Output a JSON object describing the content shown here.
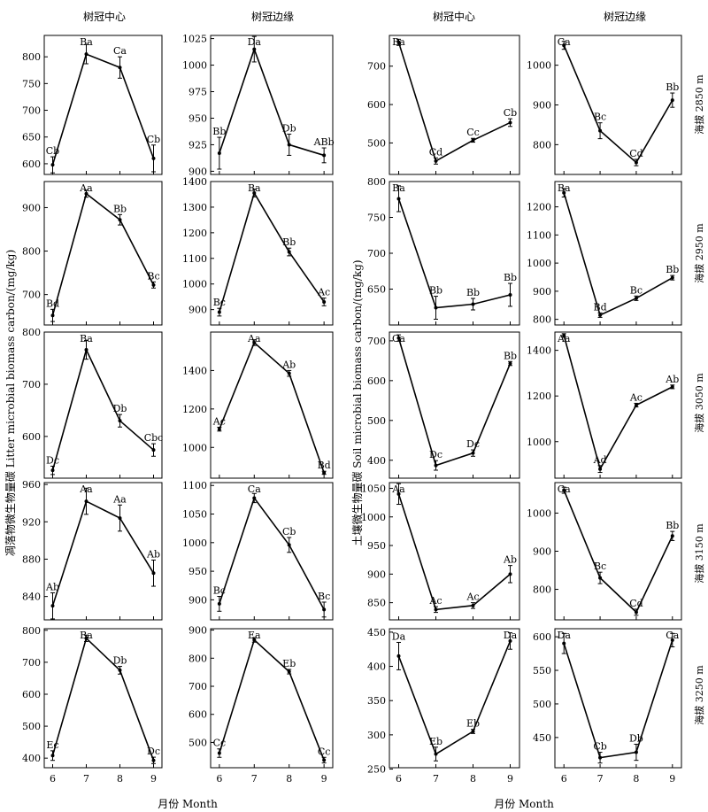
{
  "labels": {
    "col_titles": [
      "树冠中心",
      "树冠边缘",
      "树冠中心",
      "树冠边缘"
    ],
    "row_titles": [
      "海拔 2850 m",
      "海拔 2950 m",
      "海拔 3050 m",
      "海拔 3150 m",
      "海拔 3250 m"
    ],
    "left_ylabel": "凋落物微生物量碳 Litter microbial biomass carbon/(mg/kg)",
    "right_ylabel": "土壤微生物量碳 Soil microbial biomass carbon/(mg/kg)",
    "xlabel_left": "月份 Month",
    "xlabel_right": "月份 Month"
  },
  "chart_data": [
    {
      "type": "line",
      "row": 0,
      "col": 0,
      "x": [
        6,
        7,
        8,
        9
      ],
      "values": [
        598,
        805,
        780,
        610
      ],
      "err": [
        15,
        18,
        20,
        25
      ],
      "labels": [
        "Cb",
        "Ba",
        "Ca",
        "Cb"
      ],
      "ylim": [
        580,
        840
      ],
      "yticks": [
        600,
        650,
        700,
        750,
        800
      ]
    },
    {
      "type": "line",
      "row": 0,
      "col": 1,
      "x": [
        6,
        7,
        8,
        9
      ],
      "values": [
        917,
        1015,
        925,
        915
      ],
      "err": [
        15,
        12,
        10,
        7
      ],
      "labels": [
        "Bb",
        "Da",
        "Db",
        "ABb"
      ],
      "ylim": [
        897,
        1028
      ],
      "yticks": [
        900,
        925,
        950,
        975,
        1000,
        1025
      ]
    },
    {
      "type": "line",
      "row": 0,
      "col": 2,
      "x": [
        6,
        7,
        8,
        9
      ],
      "values": [
        762,
        453,
        507,
        553
      ],
      "err": [
        8,
        8,
        5,
        10
      ],
      "labels": [
        "Ba",
        "Cd",
        "Cc",
        "Cb"
      ],
      "ylim": [
        418,
        780
      ],
      "yticks": [
        500,
        600,
        700
      ]
    },
    {
      "type": "line",
      "row": 0,
      "col": 3,
      "x": [
        6,
        7,
        8,
        9
      ],
      "values": [
        1050,
        835,
        755,
        912
      ],
      "err": [
        10,
        20,
        8,
        18
      ],
      "labels": [
        "Ca",
        "Bc",
        "Cd",
        "Bb"
      ],
      "ylim": [
        725,
        1075
      ],
      "yticks": [
        800,
        900,
        1000
      ]
    },
    {
      "type": "line",
      "row": 1,
      "col": 0,
      "x": [
        6,
        7,
        8,
        9
      ],
      "values": [
        652,
        932,
        872,
        722
      ],
      "err": [
        14,
        8,
        12,
        7
      ],
      "labels": [
        "Bd",
        "Aa",
        "Bb",
        "Bc"
      ],
      "ylim": [
        630,
        960
      ],
      "yticks": [
        700,
        800,
        900
      ]
    },
    {
      "type": "line",
      "row": 1,
      "col": 1,
      "x": [
        6,
        7,
        8,
        9
      ],
      "values": [
        890,
        1355,
        1125,
        930
      ],
      "err": [
        15,
        15,
        15,
        15
      ],
      "labels": [
        "Bc",
        "Ba",
        "Bb",
        "Ac"
      ],
      "ylim": [
        840,
        1400
      ],
      "yticks": [
        900,
        1000,
        1100,
        1200,
        1300,
        1400
      ]
    },
    {
      "type": "line",
      "row": 1,
      "col": 2,
      "x": [
        6,
        7,
        8,
        9
      ],
      "values": [
        776,
        624,
        629,
        642
      ],
      "err": [
        18,
        16,
        8,
        16
      ],
      "labels": [
        "Ba",
        "Bb",
        "Bb",
        "Bb"
      ],
      "ylim": [
        600,
        800
      ],
      "yticks": [
        650,
        700,
        750,
        800
      ]
    },
    {
      "type": "line",
      "row": 1,
      "col": 3,
      "x": [
        6,
        7,
        8,
        9
      ],
      "values": [
        1250,
        815,
        875,
        948
      ],
      "err": [
        15,
        8,
        8,
        8
      ],
      "labels": [
        "Ba",
        "Bd",
        "Bc",
        "Bb"
      ],
      "ylim": [
        780,
        1290
      ],
      "yticks": [
        800,
        900,
        1000,
        1100,
        1200
      ]
    },
    {
      "type": "line",
      "row": 2,
      "col": 0,
      "x": [
        6,
        7,
        8,
        9
      ],
      "values": [
        535,
        766,
        630,
        574
      ],
      "err": [
        8,
        18,
        12,
        12
      ],
      "labels": [
        "Dc",
        "Ba",
        "Db",
        "Cbc"
      ],
      "ylim": [
        520,
        800
      ],
      "yticks": [
        600,
        700,
        800
      ]
    },
    {
      "type": "line",
      "row": 2,
      "col": 1,
      "x": [
        6,
        7,
        8,
        9
      ],
      "values": [
        1095,
        1545,
        1385,
        868
      ],
      "err": [
        10,
        15,
        15,
        8
      ],
      "labels": [
        "Ac",
        "Aa",
        "Ab",
        "Bd"
      ],
      "ylim": [
        840,
        1600
      ],
      "yticks": [
        1000,
        1200,
        1400
      ]
    },
    {
      "type": "line",
      "row": 2,
      "col": 2,
      "x": [
        6,
        7,
        8,
        9
      ],
      "values": [
        707,
        387,
        418,
        643
      ],
      "err": [
        8,
        12,
        8,
        5
      ],
      "labels": [
        "Ca",
        "Dc",
        "Dc",
        "Bb"
      ],
      "ylim": [
        355,
        722
      ],
      "yticks": [
        400,
        500,
        600,
        700
      ]
    },
    {
      "type": "line",
      "row": 2,
      "col": 3,
      "x": [
        6,
        7,
        8,
        9
      ],
      "values": [
        1465,
        880,
        1160,
        1240
      ],
      "err": [
        8,
        15,
        8,
        8
      ],
      "labels": [
        "Aa",
        "Ad",
        "Ac",
        "Ab"
      ],
      "ylim": [
        840,
        1480
      ],
      "yticks": [
        1000,
        1200,
        1400
      ]
    },
    {
      "type": "line",
      "row": 3,
      "col": 0,
      "x": [
        6,
        7,
        8,
        9
      ],
      "values": [
        830,
        942,
        924,
        865
      ],
      "err": [
        14,
        14,
        14,
        14
      ],
      "labels": [
        "Ab",
        "Aa",
        "Aa",
        "Ab"
      ],
      "ylim": [
        815,
        962
      ],
      "yticks": [
        840,
        880,
        920,
        960
      ]
    },
    {
      "type": "line",
      "row": 3,
      "col": 1,
      "x": [
        6,
        7,
        8,
        9
      ],
      "values": [
        893,
        1078,
        996,
        883
      ],
      "err": [
        13,
        8,
        13,
        13
      ],
      "labels": [
        "Bc",
        "Ca",
        "Cb",
        "Bc"
      ],
      "ylim": [
        865,
        1105
      ],
      "yticks": [
        900,
        950,
        1000,
        1050,
        1100
      ]
    },
    {
      "type": "line",
      "row": 3,
      "col": 2,
      "x": [
        6,
        7,
        8,
        9
      ],
      "values": [
        1040,
        838,
        845,
        900
      ],
      "err": [
        18,
        5,
        5,
        15
      ],
      "labels": [
        "Aa",
        "Ac",
        "Ac",
        "Ab"
      ],
      "ylim": [
        820,
        1060
      ],
      "yticks": [
        850,
        900,
        950,
        1000,
        1050
      ]
    },
    {
      "type": "line",
      "row": 3,
      "col": 3,
      "x": [
        6,
        7,
        8,
        9
      ],
      "values": [
        1060,
        830,
        740,
        940
      ],
      "err": [
        8,
        15,
        8,
        12
      ],
      "labels": [
        "Ca",
        "Bc",
        "Cd",
        "Bb"
      ],
      "ylim": [
        720,
        1080
      ],
      "yticks": [
        800,
        900,
        1000
      ]
    },
    {
      "type": "line",
      "row": 4,
      "col": 0,
      "x": [
        6,
        7,
        8,
        9
      ],
      "values": [
        408,
        775,
        675,
        393
      ],
      "err": [
        15,
        10,
        12,
        10
      ],
      "labels": [
        "Ec",
        "Ba",
        "Db",
        "Dc"
      ],
      "ylim": [
        370,
        805
      ],
      "yticks": [
        400,
        500,
        600,
        700,
        800
      ]
    },
    {
      "type": "line",
      "row": 4,
      "col": 1,
      "x": [
        6,
        7,
        8,
        9
      ],
      "values": [
        462,
        865,
        752,
        437
      ],
      "err": [
        15,
        8,
        8,
        10
      ],
      "labels": [
        "Cc",
        "Ea",
        "Eb",
        "Cc"
      ],
      "ylim": [
        410,
        905
      ],
      "yticks": [
        500,
        600,
        700,
        800,
        900
      ]
    },
    {
      "type": "line",
      "row": 4,
      "col": 2,
      "x": [
        6,
        7,
        8,
        9
      ],
      "values": [
        415,
        272,
        305,
        437
      ],
      "err": [
        20,
        10,
        3,
        12
      ],
      "labels": [
        "Da",
        "Eb",
        "Eb",
        "Da"
      ],
      "ylim": [
        252,
        455
      ],
      "yticks": [
        250,
        300,
        350,
        400,
        450
      ]
    },
    {
      "type": "line",
      "row": 4,
      "col": 3,
      "x": [
        6,
        7,
        8,
        9
      ],
      "values": [
        590,
        420,
        428,
        595
      ],
      "err": [
        15,
        8,
        12,
        10
      ],
      "labels": [
        "Da",
        "Cb",
        "Db",
        "Ca"
      ],
      "ylim": [
        405,
        612
      ],
      "yticks": [
        450,
        500,
        550,
        600
      ]
    }
  ]
}
